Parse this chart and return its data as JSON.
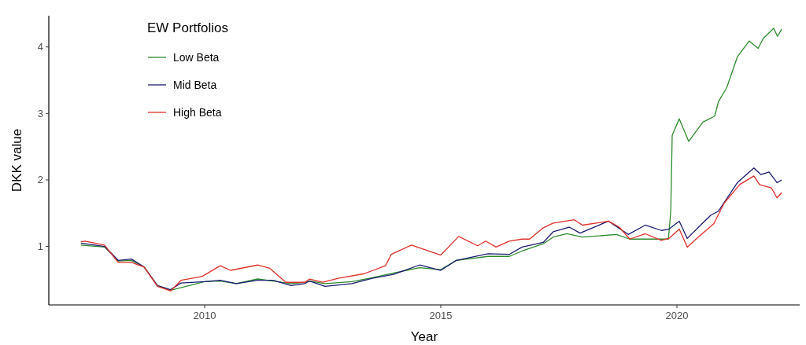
{
  "chart_data": {
    "type": "line",
    "xlabel": "Year",
    "ylabel": "DKK value",
    "legend_title": "EW Portfolios",
    "legend": "top left",
    "grid": false,
    "line_style": "solid",
    "marker": "none",
    "xlim": [
      2006.7,
      2022.6
    ],
    "xticks": [
      2010,
      2015,
      2020
    ],
    "ylim": [
      0.12,
      4.47
    ],
    "yticks": [
      1,
      2,
      3,
      4
    ],
    "series": [
      {
        "name": "Low Beta",
        "color": "#2e8b2e",
        "x": [
          2007.38,
          2007.88,
          2008.17,
          2008.45,
          2008.72,
          2009.0,
          2009.28,
          2010.0,
          2010.33,
          2010.67,
          2011.12,
          2011.45,
          2011.83,
          2012.12,
          2012.22,
          2012.55,
          2013.12,
          2013.55,
          2014.0,
          2014.55,
          2015.0,
          2015.33,
          2016.0,
          2016.45,
          2016.72,
          2017.17,
          2017.38,
          2017.67,
          2018.0,
          2018.72,
          2019.0,
          2019.67,
          2019.82,
          2019.87,
          2019.9,
          2020.05,
          2020.25,
          2020.55,
          2020.8,
          2020.88,
          2021.05,
          2021.28,
          2021.53,
          2021.72,
          2021.83,
          2022.05,
          2022.13,
          2022.22
        ],
        "values": [
          1.02,
          0.99,
          0.78,
          0.79,
          0.69,
          0.41,
          0.34,
          0.47,
          0.48,
          0.44,
          0.51,
          0.48,
          0.44,
          0.46,
          0.48,
          0.44,
          0.47,
          0.53,
          0.6,
          0.68,
          0.65,
          0.79,
          0.85,
          0.85,
          0.93,
          1.04,
          1.14,
          1.19,
          1.14,
          1.18,
          1.11,
          1.11,
          1.11,
          1.53,
          2.67,
          2.92,
          2.58,
          2.87,
          2.96,
          3.18,
          3.38,
          3.85,
          4.09,
          3.98,
          4.13,
          4.28,
          4.16,
          4.27
        ]
      },
      {
        "name": "Mid Beta",
        "color": "#1c1c72",
        "x": [
          2007.38,
          2007.88,
          2008.17,
          2008.45,
          2008.72,
          2009.0,
          2009.28,
          2009.5,
          2010.0,
          2010.33,
          2010.67,
          2011.12,
          2011.45,
          2011.83,
          2012.12,
          2012.22,
          2012.55,
          2013.12,
          2013.55,
          2014.0,
          2014.55,
          2015.0,
          2015.33,
          2016.0,
          2016.45,
          2016.72,
          2017.17,
          2017.38,
          2017.72,
          2017.95,
          2018.55,
          2018.97,
          2019.33,
          2019.67,
          2019.83,
          2020.05,
          2020.22,
          2020.5,
          2020.72,
          2020.88,
          2021.28,
          2021.63,
          2021.78,
          2021.95,
          2022.12,
          2022.22
        ],
        "values": [
          1.05,
          1.0,
          0.79,
          0.81,
          0.69,
          0.41,
          0.35,
          0.45,
          0.47,
          0.49,
          0.44,
          0.49,
          0.49,
          0.41,
          0.44,
          0.48,
          0.4,
          0.44,
          0.52,
          0.58,
          0.72,
          0.64,
          0.79,
          0.89,
          0.88,
          0.99,
          1.06,
          1.22,
          1.29,
          1.2,
          1.38,
          1.18,
          1.32,
          1.24,
          1.26,
          1.38,
          1.12,
          1.32,
          1.47,
          1.53,
          1.96,
          2.18,
          2.08,
          2.12,
          1.96,
          2.0
        ]
      },
      {
        "name": "High Beta",
        "color": "#e0302a",
        "x": [
          2007.38,
          2007.47,
          2007.88,
          2008.17,
          2008.45,
          2008.72,
          2009.0,
          2009.28,
          2009.5,
          2009.95,
          2010.33,
          2010.55,
          2011.12,
          2011.38,
          2011.72,
          2012.12,
          2012.22,
          2012.5,
          2012.83,
          2013.38,
          2013.83,
          2013.95,
          2014.38,
          2015.0,
          2015.38,
          2015.78,
          2015.95,
          2016.17,
          2016.45,
          2016.72,
          2016.88,
          2017.17,
          2017.38,
          2017.83,
          2018.0,
          2018.55,
          2018.78,
          2019.0,
          2019.33,
          2019.67,
          2019.83,
          2020.05,
          2020.22,
          2020.45,
          2020.78,
          2021.0,
          2021.33,
          2021.63,
          2021.75,
          2022.0,
          2022.12,
          2022.22
        ],
        "values": [
          1.07,
          1.08,
          1.02,
          0.76,
          0.76,
          0.69,
          0.4,
          0.33,
          0.49,
          0.55,
          0.71,
          0.64,
          0.72,
          0.67,
          0.46,
          0.46,
          0.51,
          0.46,
          0.52,
          0.59,
          0.71,
          0.88,
          1.02,
          0.87,
          1.15,
          1.01,
          1.08,
          0.99,
          1.08,
          1.11,
          1.11,
          1.28,
          1.35,
          1.4,
          1.32,
          1.38,
          1.29,
          1.11,
          1.19,
          1.09,
          1.12,
          1.26,
          0.99,
          1.14,
          1.34,
          1.65,
          1.93,
          2.06,
          1.93,
          1.88,
          1.73,
          1.81
        ]
      }
    ]
  }
}
